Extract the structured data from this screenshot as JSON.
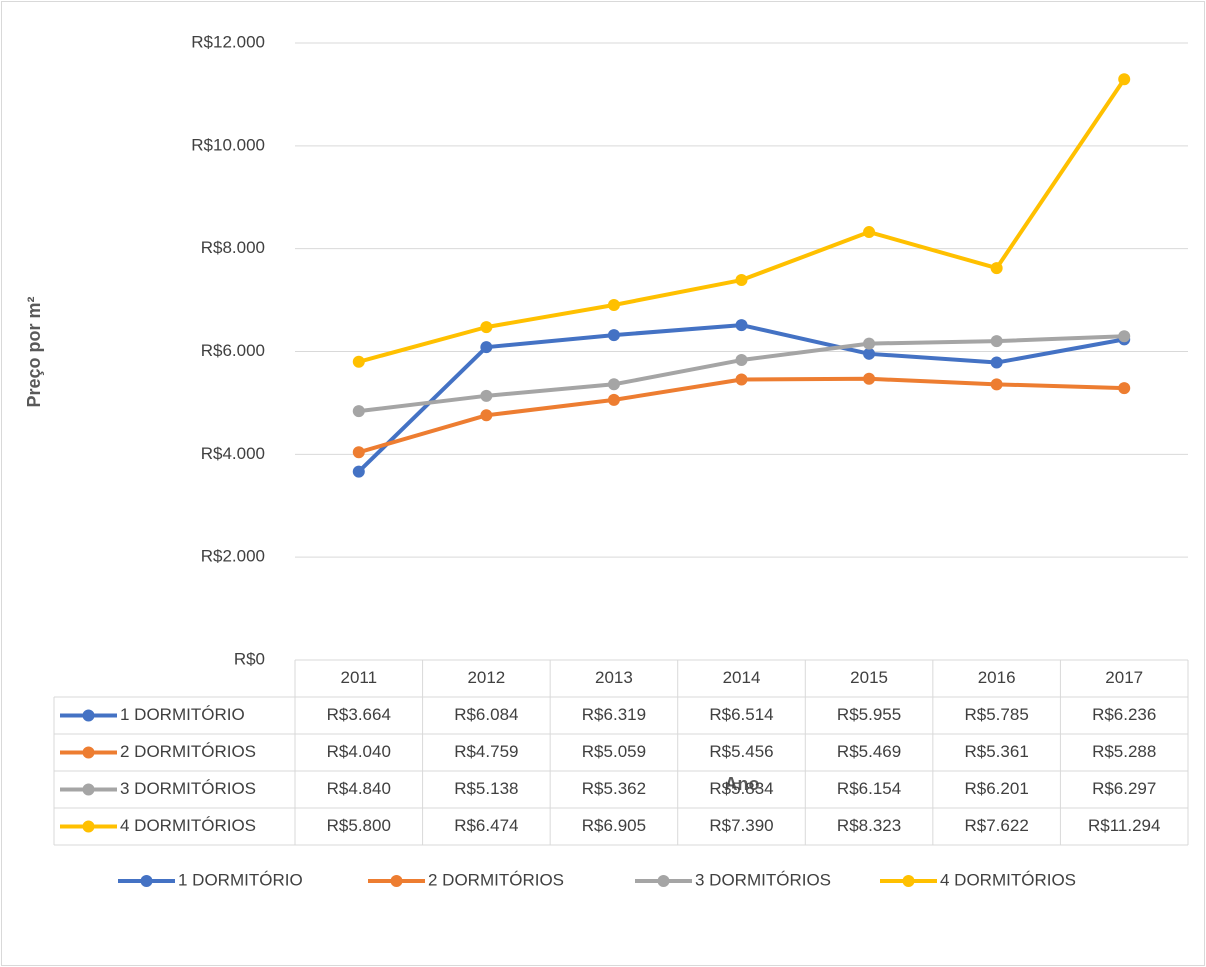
{
  "chart_data": {
    "type": "line",
    "y_axis_label": "Preço por m²",
    "x_axis_label": "Ano",
    "categories": [
      "2011",
      "2012",
      "2013",
      "2014",
      "2015",
      "2016",
      "2017"
    ],
    "series": [
      {
        "name": "1 DORMITÓRIO",
        "color": "#4472c4",
        "values": [
          3664,
          6084,
          6319,
          6514,
          5955,
          5785,
          6236
        ],
        "value_labels": [
          "R$3.664",
          "R$6.084",
          "R$6.319",
          "R$6.514",
          "R$5.955",
          "R$5.785",
          "R$6.236"
        ]
      },
      {
        "name": "2 DORMITÓRIOS",
        "color": "#ed7d31",
        "values": [
          4040,
          4759,
          5059,
          5456,
          5469,
          5361,
          5288
        ],
        "value_labels": [
          "R$4.040",
          "R$4.759",
          "R$5.059",
          "R$5.456",
          "R$5.469",
          "R$5.361",
          "R$5.288"
        ]
      },
      {
        "name": "3 DORMITÓRIOS",
        "color": "#a5a5a5",
        "values": [
          4840,
          5138,
          5362,
          5834,
          6154,
          6201,
          6297
        ],
        "value_labels": [
          "R$4.840",
          "R$5.138",
          "R$5.362",
          "R$5.834",
          "R$6.154",
          "R$6.201",
          "R$6.297"
        ]
      },
      {
        "name": "4 DORMITÓRIOS",
        "color": "#ffc000",
        "values": [
          5800,
          6474,
          6905,
          7390,
          8323,
          7622,
          11294
        ],
        "value_labels": [
          "R$5.800",
          "R$6.474",
          "R$6.905",
          "R$7.390",
          "R$8.323",
          "R$7.622",
          "R$11.294"
        ]
      }
    ],
    "ylim": [
      0,
      12000
    ],
    "yticks": [
      {
        "value": 0,
        "label": "R$0"
      },
      {
        "value": 2000,
        "label": "R$2.000"
      },
      {
        "value": 4000,
        "label": "R$4.000"
      },
      {
        "value": 6000,
        "label": "R$6.000"
      },
      {
        "value": 8000,
        "label": "R$8.000"
      },
      {
        "value": 10000,
        "label": "R$10.000"
      },
      {
        "value": 12000,
        "label": "R$12.000"
      }
    ],
    "grid": true,
    "legend": "bottom"
  }
}
